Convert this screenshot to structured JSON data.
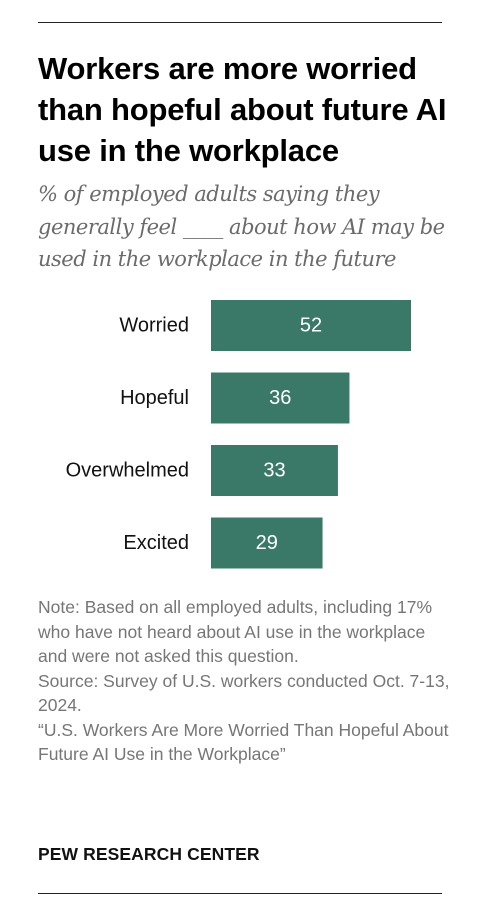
{
  "title": "Workers are more worried than hopeful about future AI use in the workplace",
  "subtitle": "% of employed adults saying they generally feel ____ about how AI may be used in the workplace in the future",
  "chart_data": {
    "type": "bar",
    "orientation": "horizontal",
    "categories": [
      "Worried",
      "Hopeful",
      "Overwhelmed",
      "Excited"
    ],
    "values": [
      52,
      36,
      33,
      29
    ],
    "title": "Workers are more worried than hopeful about future AI use in the workplace",
    "xlabel": "",
    "ylabel": "",
    "grid": false,
    "data_labels": true,
    "bar_color": "#3a7868"
  },
  "notes": {
    "note": "Note: Based on all employed adults, including 17% who have not heard about AI use in the workplace and were not asked this question.",
    "source": "Source: Survey of U.S. workers conducted Oct. 7-13, 2024.",
    "report": "“U.S. Workers Are More Worried Than Hopeful About Future AI Use in the Workplace”"
  },
  "brand": "PEW RESEARCH CENTER",
  "colors": {
    "bar": "#3a7868",
    "subtitle": "#6b6b6b",
    "notes": "#767676"
  }
}
